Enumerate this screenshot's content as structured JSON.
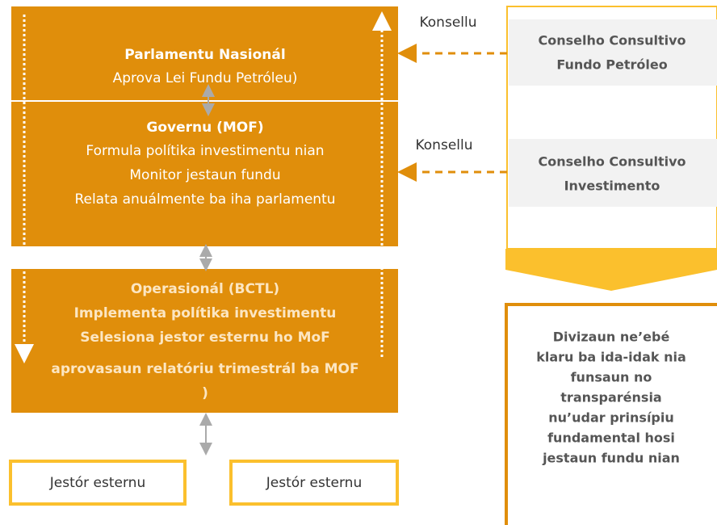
{
  "nodes": [
    {
      "title": "Parlamentu Nasionál",
      "lines": [
        "Aprova Lei Fundu Petróleu)"
      ]
    },
    {
      "title": "Governu (MOF)",
      "lines": [
        "Formula polítika investimentu nian",
        "Monitor jestaun fundu",
        "Relata anuálmente ba iha parlamentu"
      ]
    },
    {
      "title": "Operasionál (BCTL)",
      "lines": [
        "Implementa polítika investimentu",
        "Selesiona jestor esternu ho MoF",
        "aprovasaun relatóriu trimestrál ba MOF",
        ")"
      ]
    },
    {
      "title": "Jestór esternu"
    },
    {
      "title": "Jestór esternu"
    }
  ],
  "councils": [
    {
      "lines": [
        "Conselho Consultivo",
        "Fundo Petróleo"
      ],
      "edge_label": "Konsellu"
    },
    {
      "lines": [
        "Conselho Consultivo",
        "Investimento"
      ],
      "edge_label": "Konsellu"
    }
  ],
  "note": {
    "lines": [
      "Divizaun ne’ebé",
      "klaru ba ida-idak nia",
      "funsaun no",
      "transparénsia",
      "nu’udar prinsípiu",
      "fundamental hosi",
      "jestaun fundu nian"
    ]
  }
}
